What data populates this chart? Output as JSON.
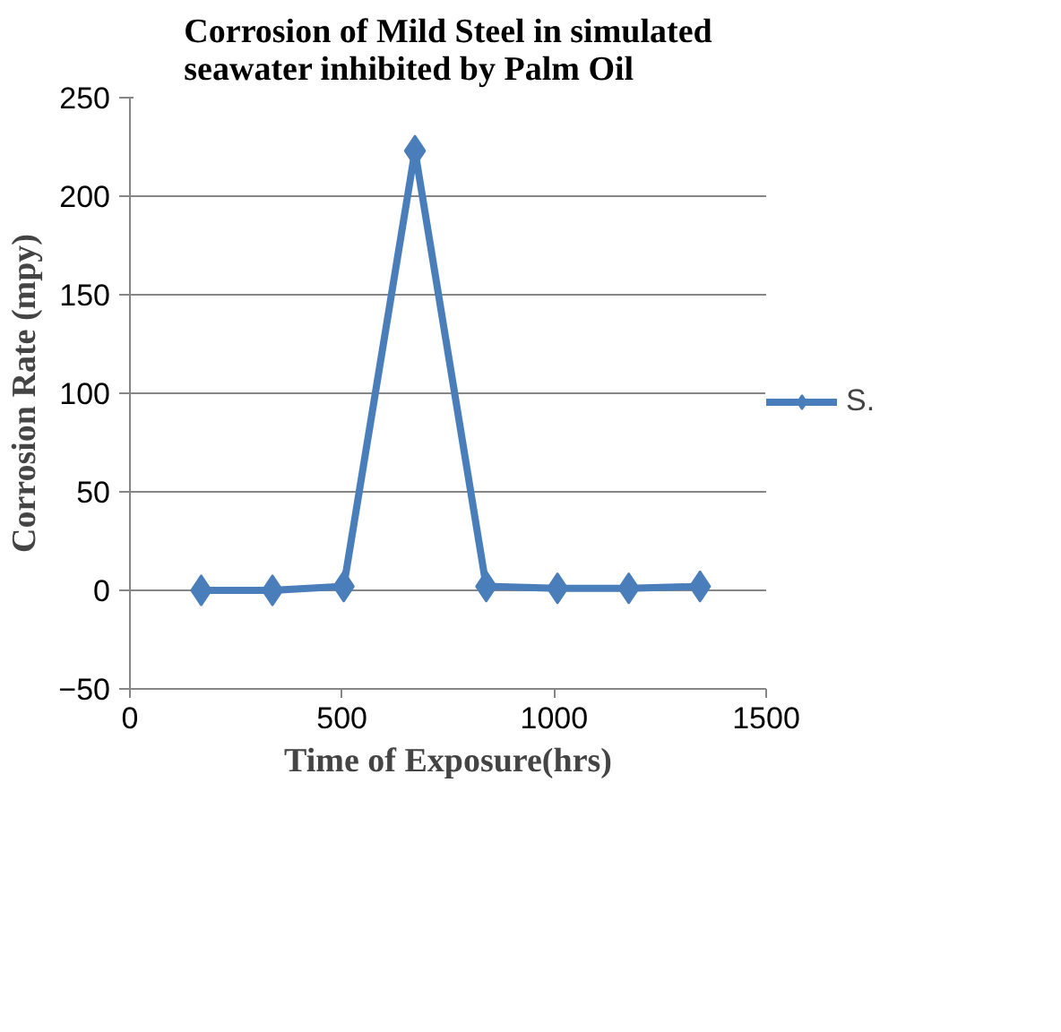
{
  "chart_data": {
    "type": "line",
    "title": "Corrosion of Mild Steel in simulated\nseawater inhibited by Palm Oil",
    "xlabel": "Time of Exposure(hrs)",
    "ylabel": "Corrosion Rate (mpy)",
    "x": [
      168,
      336,
      504,
      672,
      840,
      1008,
      1176,
      1344
    ],
    "series": [
      {
        "name": "S.",
        "color": "#4a7ebb",
        "values": [
          0,
          0,
          2,
          223,
          2,
          1,
          1,
          2
        ]
      }
    ],
    "xlim": [
      0,
      1500
    ],
    "xticks": [
      0,
      500,
      1000,
      1500
    ],
    "ylim": [
      -50,
      250
    ],
    "yticks": [
      -50,
      0,
      50,
      100,
      150,
      200,
      250
    ],
    "grid": "y",
    "legend": "right",
    "marker": "diamond",
    "line_style": "solid"
  }
}
